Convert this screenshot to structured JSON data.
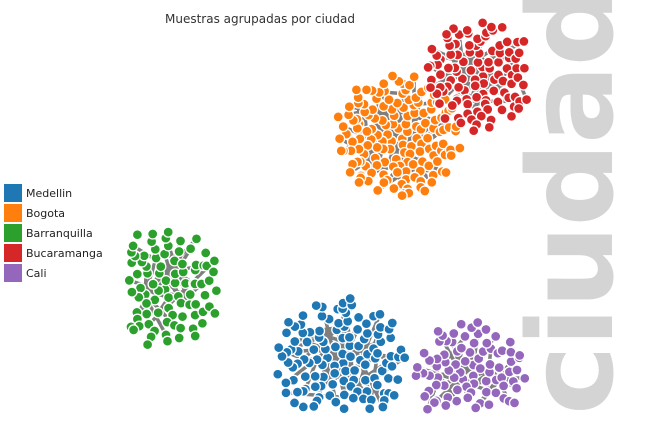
{
  "chart_data": {
    "type": "scatter",
    "title": "Muestras agrupadas por ciudad",
    "group_label": "ciudad",
    "legend_position": "left",
    "series": [
      {
        "name": "Medellin",
        "color": "#1f77b4",
        "count": 130
      },
      {
        "name": "Bogota",
        "color": "#ff7f0e",
        "count": 150
      },
      {
        "name": "Barranquilla",
        "color": "#2ca02c",
        "count": 100
      },
      {
        "name": "Bucaramanga",
        "color": "#d62728",
        "count": 110
      },
      {
        "name": "Cali",
        "color": "#9467bd",
        "count": 95
      }
    ]
  }
}
